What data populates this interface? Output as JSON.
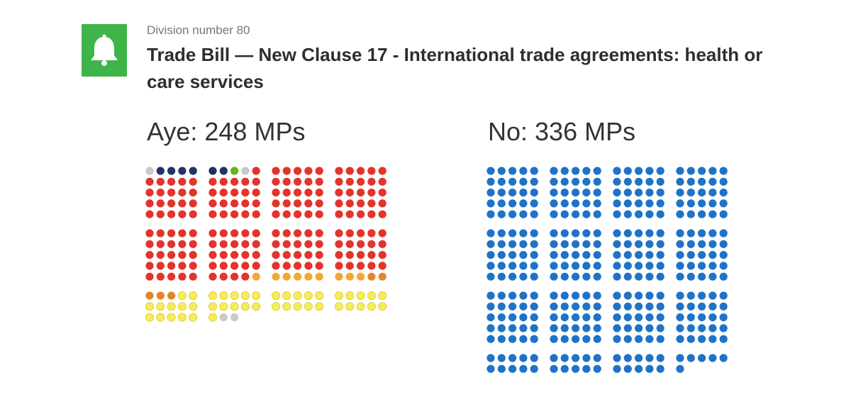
{
  "header": {
    "division": "Division number 80",
    "title": "Trade Bill — New Clause 17 - International trade agreements: health or care services"
  },
  "aye": {
    "label": "Aye: 248 MPs",
    "groups": [
      {
        "color": "#c9c9c9",
        "count": 1
      },
      {
        "color": "#1f3461",
        "count": 6
      },
      {
        "color": "#6ab023",
        "count": 1
      },
      {
        "color": "#c9c9c9",
        "count": 1
      },
      {
        "color": "#e4332b",
        "count": 180
      },
      {
        "color": "#f4a731",
        "count": 9
      },
      {
        "color": "#e0872c",
        "count": 5
      },
      {
        "color": "#f5ec5c",
        "count": 43
      },
      {
        "color": "#c9c9c9",
        "count": 2
      }
    ]
  },
  "no": {
    "label": "No: 336 MPs",
    "groups": [
      {
        "color": "#1e73c8",
        "count": 336
      }
    ]
  }
}
